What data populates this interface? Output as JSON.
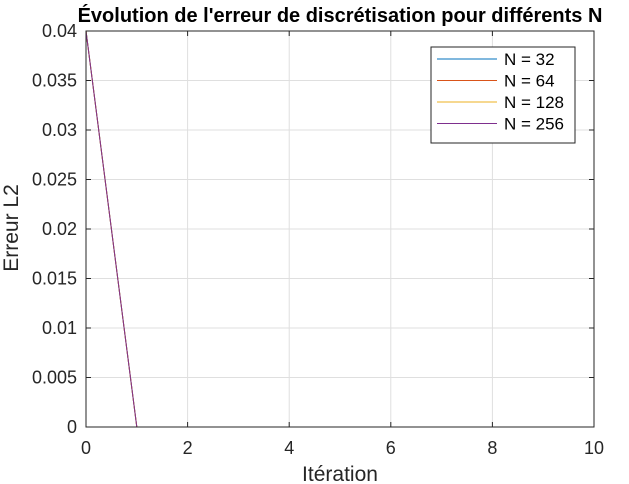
{
  "chart_data": {
    "type": "line",
    "title": "Évolution de l'erreur de discrétisation pour différents N",
    "xlabel": "Itération",
    "ylabel": "Erreur L2",
    "xlim": [
      0,
      10
    ],
    "ylim": [
      0,
      0.04
    ],
    "xticks": [
      0,
      2,
      4,
      6,
      8,
      10
    ],
    "xtick_labels": [
      "0",
      "2",
      "4",
      "6",
      "8",
      "10"
    ],
    "yticks": [
      0,
      0.005,
      0.01,
      0.015,
      0.02,
      0.025,
      0.03,
      0.035,
      0.04
    ],
    "ytick_labels": [
      "0",
      "0.005",
      "0.01",
      "0.015",
      "0.02",
      "0.025",
      "0.03",
      "0.035",
      "0.04"
    ],
    "grid": true,
    "legend_position": "top-right",
    "x": [
      0,
      1,
      2,
      3,
      4,
      5,
      6,
      7,
      8,
      9,
      10
    ],
    "series": [
      {
        "name": "N = 32",
        "color": "#0072BD",
        "values": [
          0.04,
          0,
          0,
          0,
          0,
          0,
          0,
          0,
          0,
          0,
          0
        ]
      },
      {
        "name": "N = 64",
        "color": "#D95319",
        "values": [
          0.04,
          0,
          0,
          0,
          0,
          0,
          0,
          0,
          0,
          0,
          0
        ]
      },
      {
        "name": "N = 128",
        "color": "#EDB120",
        "values": [
          0.04,
          0,
          0,
          0,
          0,
          0,
          0,
          0,
          0,
          0,
          0
        ]
      },
      {
        "name": "N = 256",
        "color": "#7E2F8E",
        "values": [
          0.04,
          0,
          0,
          0,
          0,
          0,
          0,
          0,
          0,
          0,
          0
        ]
      }
    ]
  }
}
